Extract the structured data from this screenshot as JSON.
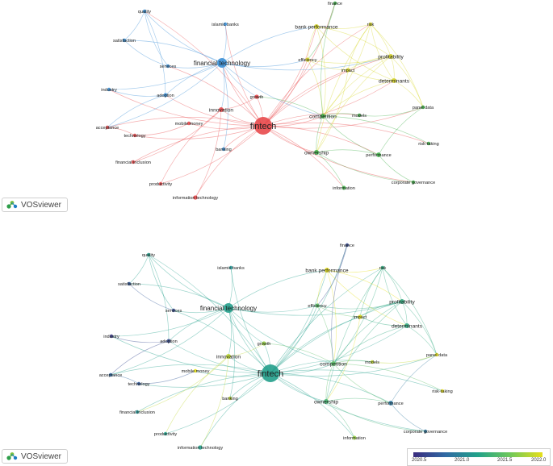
{
  "brand": {
    "label": "VOSviewer"
  },
  "top_map": {
    "nodes": [
      {
        "id": "finance",
        "label": "finance",
        "cluster": "green",
        "weight": 1
      },
      {
        "id": "quality",
        "label": "quality",
        "cluster": "blue",
        "weight": 1
      },
      {
        "id": "islamic_banks",
        "label": "islamic banks",
        "cluster": "blue",
        "weight": 1
      },
      {
        "id": "risk",
        "label": "risk",
        "cluster": "yellow",
        "weight": 1
      },
      {
        "id": "bank_performance",
        "label": "bank performance",
        "cluster": "yellow",
        "weight": 1.5
      },
      {
        "id": "satisfaction",
        "label": "satisfaction",
        "cluster": "blue",
        "weight": 1
      },
      {
        "id": "profitability",
        "label": "profitability",
        "cluster": "yellow",
        "weight": 1.5
      },
      {
        "id": "financial_technology",
        "label": "financial technology",
        "cluster": "blue",
        "weight": 3
      },
      {
        "id": "services",
        "label": "services",
        "cluster": "blue",
        "weight": 1
      },
      {
        "id": "efficiency",
        "label": "efficiency",
        "cluster": "yellow",
        "weight": 1.3
      },
      {
        "id": "impact",
        "label": "impact",
        "cluster": "yellow",
        "weight": 1.3
      },
      {
        "id": "determinants",
        "label": "determinants",
        "cluster": "yellow",
        "weight": 1.5
      },
      {
        "id": "industry",
        "label": "industry",
        "cluster": "blue",
        "weight": 1
      },
      {
        "id": "adoption",
        "label": "adoption",
        "cluster": "blue",
        "weight": 1.2
      },
      {
        "id": "growth",
        "label": "growth",
        "cluster": "red",
        "weight": 1.3
      },
      {
        "id": "panel_data",
        "label": "panel data",
        "cluster": "green",
        "weight": 1
      },
      {
        "id": "innovation",
        "label": "innovation",
        "cluster": "red",
        "weight": 1.5
      },
      {
        "id": "models",
        "label": "models",
        "cluster": "green",
        "weight": 1
      },
      {
        "id": "competition",
        "label": "competition",
        "cluster": "green",
        "weight": 1.5
      },
      {
        "id": "acceptance",
        "label": "acceptance",
        "cluster": "red",
        "weight": 1
      },
      {
        "id": "mobile_money",
        "label": "mobile money",
        "cluster": "red",
        "weight": 1
      },
      {
        "id": "fintech",
        "label": "fintech",
        "cluster": "red",
        "weight": 6
      },
      {
        "id": "technology",
        "label": "technology",
        "cluster": "red",
        "weight": 1
      },
      {
        "id": "risk_taking",
        "label": "risk-taking",
        "cluster": "green",
        "weight": 1
      },
      {
        "id": "banking",
        "label": "banking",
        "cluster": "blue",
        "weight": 1
      },
      {
        "id": "ownership",
        "label": "ownership",
        "cluster": "green",
        "weight": 1.5
      },
      {
        "id": "performance",
        "label": "performance",
        "cluster": "green",
        "weight": 1.4
      },
      {
        "id": "financial_inclusion",
        "label": "financial inclusion",
        "cluster": "red",
        "weight": 1
      },
      {
        "id": "corporate_governance",
        "label": "corporate governance",
        "cluster": "green",
        "weight": 1
      },
      {
        "id": "productivity",
        "label": "productivity",
        "cluster": "red",
        "weight": 1
      },
      {
        "id": "information",
        "label": "information",
        "cluster": "green",
        "weight": 1.2
      },
      {
        "id": "information_technology",
        "label": "information technology",
        "cluster": "red",
        "weight": 1.3
      }
    ]
  },
  "bottom_map": {
    "nodes": [
      {
        "id": "finance",
        "label": "finance",
        "year": 2020.7,
        "weight": 1
      },
      {
        "id": "quality",
        "label": "quality",
        "year": 2021.3,
        "weight": 1
      },
      {
        "id": "islamic_banks",
        "label": "islamic banks",
        "year": 2021.2,
        "weight": 1
      },
      {
        "id": "risk",
        "label": "risk",
        "year": 2021.4,
        "weight": 1
      },
      {
        "id": "bank_performance",
        "label": "bank performance",
        "year": 2022.0,
        "weight": 1.5
      },
      {
        "id": "satisfaction",
        "label": "satisfaction",
        "year": 2020.8,
        "weight": 1
      },
      {
        "id": "profitability",
        "label": "profitability",
        "year": 2021.4,
        "weight": 1.5
      },
      {
        "id": "financial_technology",
        "label": "financial technology",
        "year": 2021.3,
        "weight": 3
      },
      {
        "id": "services",
        "label": "services",
        "year": 2020.7,
        "weight": 1
      },
      {
        "id": "efficiency",
        "label": "efficiency",
        "year": 2021.6,
        "weight": 1.3
      },
      {
        "id": "impact",
        "label": "impact",
        "year": 2022.0,
        "weight": 1.3
      },
      {
        "id": "determinants",
        "label": "determinants",
        "year": 2021.4,
        "weight": 1.5
      },
      {
        "id": "industry",
        "label": "industry",
        "year": 2020.6,
        "weight": 1
      },
      {
        "id": "adoption",
        "label": "adoption",
        "year": 2020.7,
        "weight": 1.2
      },
      {
        "id": "growth",
        "label": "growth",
        "year": 2021.8,
        "weight": 1.3
      },
      {
        "id": "panel_data",
        "label": "panel data",
        "year": 2022.0,
        "weight": 1
      },
      {
        "id": "innovation",
        "label": "innovation",
        "year": 2021.9,
        "weight": 1.5
      },
      {
        "id": "models",
        "label": "models",
        "year": 2021.9,
        "weight": 1
      },
      {
        "id": "competition",
        "label": "competition",
        "year": 2021.6,
        "weight": 1.5
      },
      {
        "id": "acceptance",
        "label": "acceptance",
        "year": 2020.9,
        "weight": 1
      },
      {
        "id": "mobile_money",
        "label": "mobile money",
        "year": 2022.0,
        "weight": 1
      },
      {
        "id": "fintech",
        "label": "fintech",
        "year": 2021.3,
        "weight": 6
      },
      {
        "id": "technology",
        "label": "technology",
        "year": 2020.8,
        "weight": 1
      },
      {
        "id": "risk_taking",
        "label": "risk-taking",
        "year": 2022.1,
        "weight": 1
      },
      {
        "id": "banking",
        "label": "banking",
        "year": 2021.9,
        "weight": 1
      },
      {
        "id": "ownership",
        "label": "ownership",
        "year": 2021.5,
        "weight": 1.5
      },
      {
        "id": "performance",
        "label": "performance",
        "year": 2021.0,
        "weight": 1.4
      },
      {
        "id": "financial_inclusion",
        "label": "financial inclusion",
        "year": 2021.2,
        "weight": 1
      },
      {
        "id": "corporate_governance",
        "label": "corporate governance",
        "year": 2021.0,
        "weight": 1
      },
      {
        "id": "productivity",
        "label": "productivity",
        "year": 2021.3,
        "weight": 1
      },
      {
        "id": "information",
        "label": "information",
        "year": 2021.8,
        "weight": 1.2
      },
      {
        "id": "information_technology",
        "label": "information technology",
        "year": 2021.3,
        "weight": 1.3
      }
    ],
    "legend": {
      "ticks": [
        "2020.5",
        "2021.0",
        "2021.5",
        "2022.0"
      ],
      "range": [
        2020.5,
        2022.0
      ]
    }
  },
  "edges": [
    [
      "fintech",
      "financial_technology"
    ],
    [
      "fintech",
      "bank_performance"
    ],
    [
      "fintech",
      "profitability"
    ],
    [
      "fintech",
      "efficiency"
    ],
    [
      "fintech",
      "impact"
    ],
    [
      "fintech",
      "determinants"
    ],
    [
      "fintech",
      "risk"
    ],
    [
      "fintech",
      "growth"
    ],
    [
      "fintech",
      "innovation"
    ],
    [
      "fintech",
      "competition"
    ],
    [
      "fintech",
      "models"
    ],
    [
      "fintech",
      "ownership"
    ],
    [
      "fintech",
      "performance"
    ],
    [
      "fintech",
      "panel_data"
    ],
    [
      "fintech",
      "risk_taking"
    ],
    [
      "fintech",
      "corporate_governance"
    ],
    [
      "fintech",
      "information"
    ],
    [
      "fintech",
      "banking"
    ],
    [
      "fintech",
      "mobile_money"
    ],
    [
      "fintech",
      "acceptance"
    ],
    [
      "fintech",
      "technology"
    ],
    [
      "fintech",
      "financial_inclusion"
    ],
    [
      "fintech",
      "productivity"
    ],
    [
      "fintech",
      "information_technology"
    ],
    [
      "fintech",
      "adoption"
    ],
    [
      "fintech",
      "services"
    ],
    [
      "fintech",
      "islamic_banks"
    ],
    [
      "fintech",
      "finance"
    ],
    [
      "fintech",
      "industry"
    ],
    [
      "fintech",
      "quality"
    ],
    [
      "financial_technology",
      "quality"
    ],
    [
      "financial_technology",
      "satisfaction"
    ],
    [
      "financial_technology",
      "services"
    ],
    [
      "financial_technology",
      "adoption"
    ],
    [
      "financial_technology",
      "industry"
    ],
    [
      "financial_technology",
      "islamic_banks"
    ],
    [
      "financial_technology",
      "innovation"
    ],
    [
      "financial_technology",
      "growth"
    ],
    [
      "financial_technology",
      "banking"
    ],
    [
      "financial_technology",
      "efficiency"
    ],
    [
      "financial_technology",
      "bank_performance"
    ],
    [
      "financial_technology",
      "competition"
    ],
    [
      "financial_technology",
      "acceptance"
    ],
    [
      "financial_technology",
      "profitability"
    ],
    [
      "quality",
      "satisfaction"
    ],
    [
      "quality",
      "services"
    ],
    [
      "quality",
      "adoption"
    ],
    [
      "satisfaction",
      "services"
    ],
    [
      "adoption",
      "industry"
    ],
    [
      "adoption",
      "acceptance"
    ],
    [
      "acceptance",
      "technology"
    ],
    [
      "innovation",
      "growth"
    ],
    [
      "innovation",
      "financial_inclusion"
    ],
    [
      "innovation",
      "productivity"
    ],
    [
      "innovation",
      "information_technology"
    ],
    [
      "bank_performance",
      "risk"
    ],
    [
      "bank_performance",
      "profitability"
    ],
    [
      "bank_performance",
      "efficiency"
    ],
    [
      "bank_performance",
      "competition"
    ],
    [
      "bank_performance",
      "determinants"
    ],
    [
      "risk",
      "profitability"
    ],
    [
      "risk",
      "determinants"
    ],
    [
      "risk",
      "competition"
    ],
    [
      "risk",
      "impact"
    ],
    [
      "risk",
      "panel_data"
    ],
    [
      "risk",
      "ownership"
    ],
    [
      "profitability",
      "determinants"
    ],
    [
      "profitability",
      "impact"
    ],
    [
      "profitability",
      "efficiency"
    ],
    [
      "profitability",
      "competition"
    ],
    [
      "profitability",
      "panel_data"
    ],
    [
      "profitability",
      "ownership"
    ],
    [
      "determinants",
      "panel_data"
    ],
    [
      "determinants",
      "competition"
    ],
    [
      "determinants",
      "impact"
    ],
    [
      "efficiency",
      "impact"
    ],
    [
      "efficiency",
      "competition"
    ],
    [
      "competition",
      "ownership"
    ],
    [
      "competition",
      "models"
    ],
    [
      "competition",
      "performance"
    ],
    [
      "competition",
      "risk_taking"
    ],
    [
      "competition",
      "growth"
    ],
    [
      "ownership",
      "performance"
    ],
    [
      "ownership",
      "corporate_governance"
    ],
    [
      "ownership",
      "information"
    ],
    [
      "performance",
      "corporate_governance"
    ],
    [
      "performance",
      "panel_data"
    ],
    [
      "models",
      "panel_data"
    ],
    [
      "impact",
      "ownership"
    ],
    [
      "finance",
      "competition"
    ],
    [
      "finance",
      "efficiency"
    ],
    [
      "technology",
      "mobile_money"
    ]
  ]
}
